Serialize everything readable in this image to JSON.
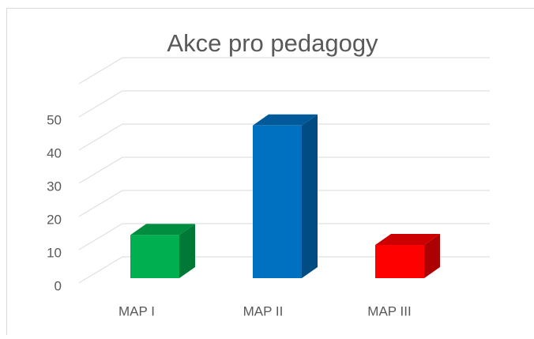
{
  "chart_data": {
    "type": "bar3d",
    "title": "Akce pro pedagogy",
    "categories": [
      "MAP I",
      "MAP II",
      "MAP III"
    ],
    "values": [
      13,
      46,
      10
    ],
    "colors": [
      "#00b050",
      "#0070c0",
      "#ff0000"
    ],
    "ylim": [
      0,
      50
    ],
    "yticks": [
      0,
      10,
      20,
      30,
      40,
      50
    ],
    "grid": true
  }
}
